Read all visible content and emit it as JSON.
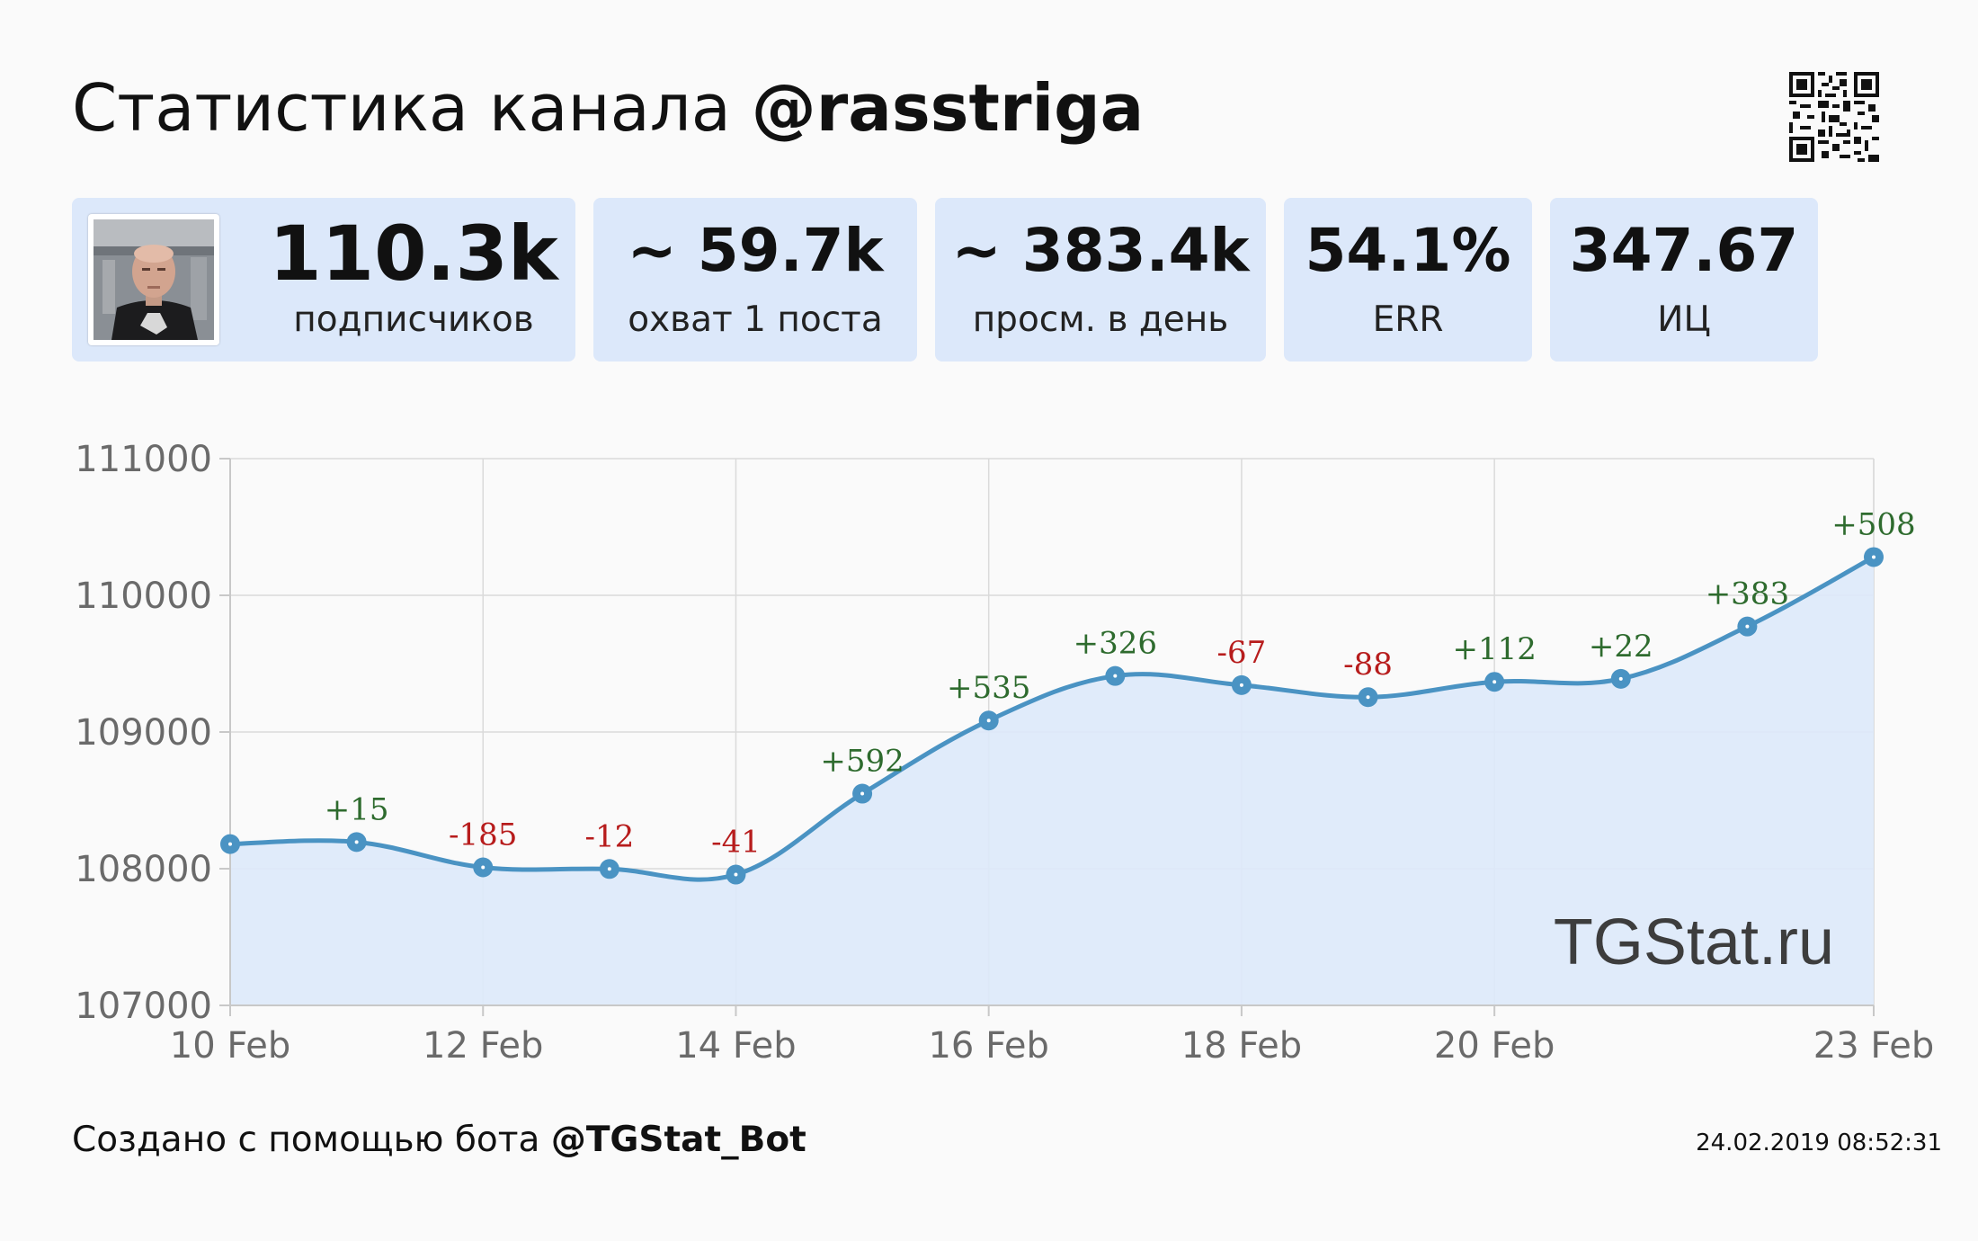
{
  "header": {
    "title_prefix": "Статистика канала",
    "channel": "@rasstriga"
  },
  "stats": [
    {
      "value": "110.3k",
      "label": "подписчиков"
    },
    {
      "value": "~ 59.7k",
      "label": "охват 1 поста"
    },
    {
      "value": "~ 383.4k",
      "label": "просм. в день"
    },
    {
      "value": "54.1%",
      "label": "ERR"
    },
    {
      "value": "347.67",
      "label": "ИЦ"
    }
  ],
  "chart_data": {
    "type": "line",
    "x": [
      "10 Feb",
      "11 Feb",
      "12 Feb",
      "13 Feb",
      "14 Feb",
      "15 Feb",
      "16 Feb",
      "17 Feb",
      "18 Feb",
      "19 Feb",
      "20 Feb",
      "21 Feb",
      "22 Feb",
      "23 Feb"
    ],
    "values": [
      108180,
      108195,
      108010,
      107998,
      107957,
      108549,
      109084,
      109410,
      109343,
      109255,
      109367,
      109389,
      109772,
      110280
    ],
    "point_labels": [
      "",
      "+15",
      "-185",
      "-12",
      "-41",
      "+592",
      "+535",
      "+326",
      "-67",
      "-88",
      "+112",
      "+22",
      "+383",
      "+508"
    ],
    "x_ticks": [
      "10 Feb",
      "12 Feb",
      "14 Feb",
      "16 Feb",
      "18 Feb",
      "20 Feb",
      "23 Feb"
    ],
    "y_ticks": [
      "111000",
      "110000",
      "109000",
      "108000",
      "107000"
    ],
    "ylim": [
      107000,
      111000
    ],
    "grid": true,
    "watermark": "TGStat.ru",
    "colors": {
      "line": "#4a93c3",
      "fill": "#dde9fa",
      "positive": "#2e6b2e",
      "negative": "#b71c1c"
    }
  },
  "footer": {
    "prefix": "Создано с помощью бота",
    "bot": "@TGStat_Bot",
    "timestamp": "24.02.2019 08:52:31"
  }
}
